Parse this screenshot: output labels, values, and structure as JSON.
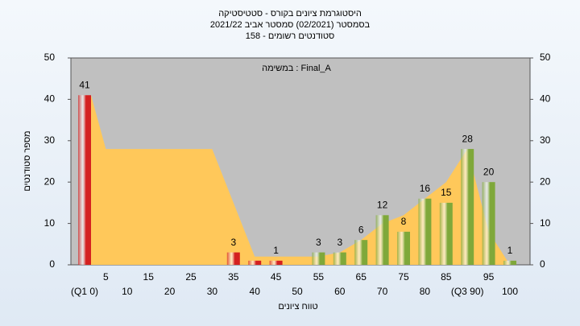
{
  "chart_data": {
    "type": "bar",
    "title": [
      "היסטוגרמת ציונים בקורס - סטטיסטיקה",
      "בסמסטר  (02/2021)  סמסטר אביב 2021/22",
      "סטודנטים רשומים - 158"
    ],
    "annotation": "במשימה : Final_A",
    "ylabel": "מספר סטודנטים",
    "xlabel": "טווח ציונים",
    "categories": [
      "(Q1 0)",
      "5",
      "10",
      "15",
      "20",
      "25",
      "30",
      "35",
      "40",
      "45",
      "50",
      "55",
      "60",
      "65",
      "70",
      "75",
      "80",
      "85",
      "(Q3 90)",
      "95",
      "100"
    ],
    "values": [
      41,
      0,
      0,
      0,
      0,
      0,
      0,
      3,
      1,
      1,
      0,
      3,
      3,
      6,
      12,
      8,
      16,
      15,
      28,
      20,
      1
    ],
    "value_labels": [
      "41",
      null,
      null,
      null,
      null,
      null,
      null,
      "3",
      null,
      "1",
      null,
      "3",
      "3",
      "6",
      "12",
      "8",
      "16",
      "15",
      "28",
      "20",
      "1"
    ],
    "colors": [
      "#d42020",
      "#d42020",
      "#d42020",
      "#d42020",
      "#d42020",
      "#d42020",
      "#d42020",
      "#d42020",
      "#d42020",
      "#d42020",
      "#d42020",
      "#7fa83a",
      "#7fa83a",
      "#7fa83a",
      "#7fa83a",
      "#7fa83a",
      "#7fa83a",
      "#7fa83a",
      "#7fa83a",
      "#7fa83a",
      "#7fa83a"
    ],
    "area_values": [
      41,
      28,
      28,
      28,
      28,
      28,
      28,
      15,
      2,
      2,
      2,
      2,
      3,
      6,
      10,
      12,
      16,
      20,
      28,
      8,
      0
    ],
    "area_color": "#ffc85a",
    "ylim": [
      0,
      50
    ],
    "yticks": [
      0,
      10,
      20,
      30,
      40,
      50
    ],
    "y2lim": [
      0,
      50
    ],
    "y2ticks": [
      0,
      10,
      20,
      30,
      40,
      50
    ],
    "grid": false
  }
}
